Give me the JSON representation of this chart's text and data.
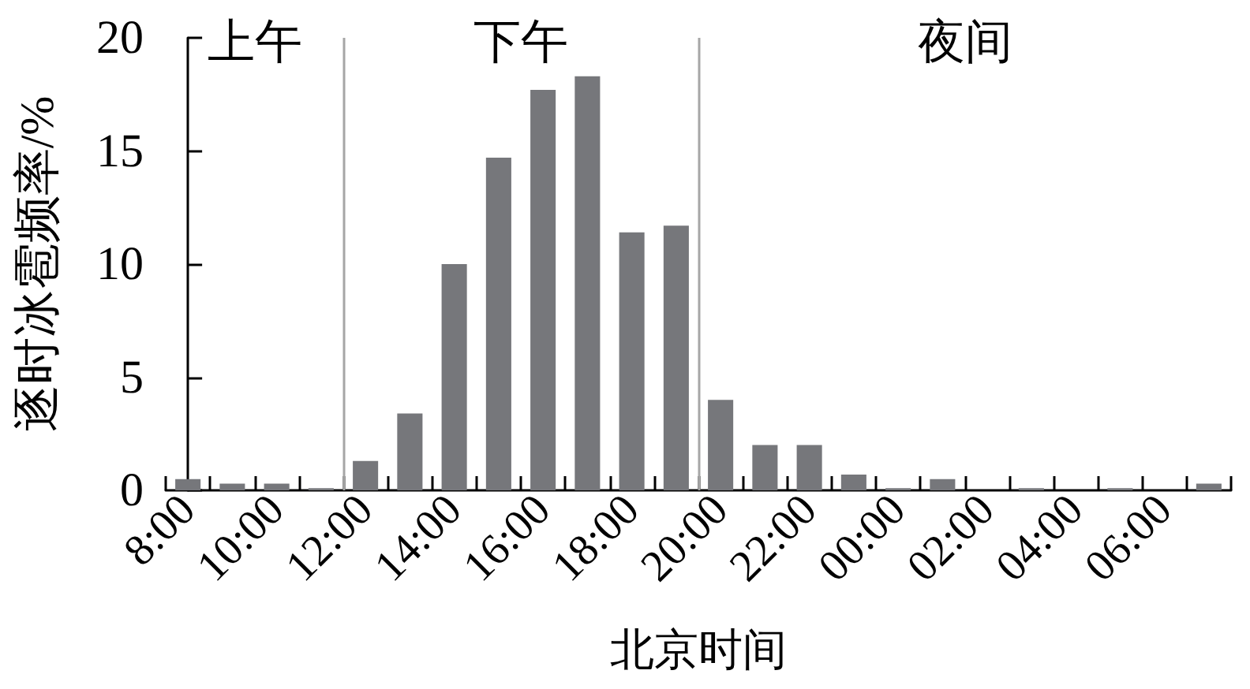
{
  "chart_data": {
    "type": "bar",
    "xlabel": "北京时间",
    "ylabel": "逐时冰雹频率/%",
    "categories": [
      "8:00",
      null,
      "10:00",
      null,
      "12:00",
      null,
      "14:00",
      null,
      "16:00",
      null,
      "18:00",
      null,
      "20:00",
      null,
      "22:00",
      null,
      "00:00",
      null,
      "02:00",
      null,
      "04:00",
      null,
      "06:00",
      null
    ],
    "values": [
      0.5,
      0.3,
      0.3,
      0.1,
      1.3,
      3.4,
      10.0,
      14.7,
      17.7,
      18.3,
      11.4,
      11.7,
      4.0,
      2.0,
      2.0,
      0.7,
      0.1,
      0.5,
      0,
      0.1,
      0,
      0.1,
      0,
      0.3
    ],
    "color": "#76777b",
    "ylim": [
      0,
      20
    ],
    "yticks": [
      0,
      5,
      10,
      15,
      20
    ],
    "grid": false,
    "ref_lines": [
      {
        "axis": "x",
        "value": "12:00",
        "color": "#a6a6a6"
      },
      {
        "axis": "x",
        "value": "20:00",
        "color": "#a6a6a6"
      }
    ],
    "annotations": [
      "上午",
      "下午",
      "夜间"
    ]
  }
}
